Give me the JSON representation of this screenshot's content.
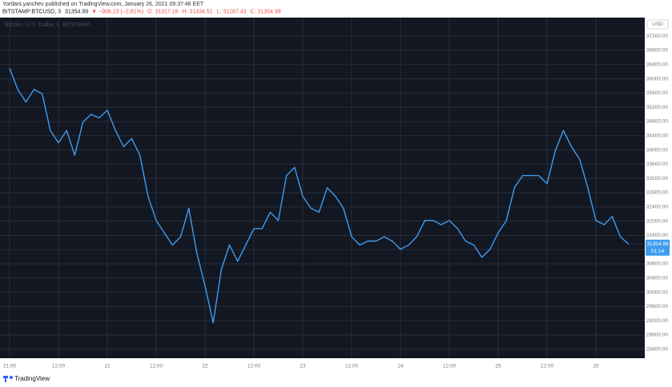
{
  "chart_data": {
    "type": "line",
    "header": {
      "published": "YordanLyanchev published on TradingView.com, January 26, 2021 09:37:48 EET",
      "symbol": "BITSTAMP:BTCUSD, 3",
      "last": "31354.99",
      "change": "▼ −906.23 (−2.81%)",
      "ohlc": [
        "O: 31317.16",
        "H: 31434.51",
        "L: 31287.43",
        "C: 31354.99"
      ]
    },
    "watermark": "Bitcoin / U.S. Dollar, 3, BITSTAMP",
    "y_unit": "USD",
    "last_price_label": "31354.99",
    "countdown": "01:14",
    "brand": "TradingView",
    "color": "#3d9cf0",
    "grid": true,
    "categories": [
      "21:00",
      null,
      null,
      null,
      null,
      null,
      "12:00",
      null,
      null,
      null,
      null,
      null,
      "21",
      null,
      null,
      null,
      null,
      null,
      "12:00",
      null,
      null,
      null,
      null,
      null,
      "22",
      null,
      null,
      null,
      null,
      null,
      "12:00",
      null,
      null,
      null,
      null,
      null,
      "23",
      null,
      null,
      null,
      null,
      null,
      "12:00",
      null,
      null,
      null,
      null,
      null,
      "24",
      null,
      null,
      null,
      null,
      null,
      "12:00",
      null,
      null,
      null,
      null,
      null,
      "25",
      null,
      null,
      null,
      null,
      null,
      "12:00",
      null,
      null,
      null,
      null,
      null,
      "26",
      null,
      null,
      null,
      null
    ],
    "values": [
      36300,
      35700,
      35350,
      35700,
      35580,
      34550,
      34200,
      34550,
      33850,
      34780,
      35000,
      34900,
      35120,
      34550,
      34090,
      34320,
      33850,
      32700,
      32020,
      31670,
      31330,
      31560,
      32360,
      31100,
      30180,
      29140,
      30640,
      31330,
      30870,
      31330,
      31790,
      31790,
      32250,
      32020,
      33280,
      33510,
      32700,
      32360,
      32250,
      32940,
      32700,
      32360,
      31560,
      31330,
      31440,
      31440,
      31560,
      31440,
      31210,
      31330,
      31560,
      32020,
      32020,
      31900,
      32020,
      31790,
      31440,
      31330,
      30980,
      31210,
      31670,
      32020,
      32940,
      33280,
      33280,
      33280,
      33050,
      33970,
      34550,
      34090,
      33740,
      32940,
      32020,
      31900,
      32130,
      31560,
      31354.99
    ],
    "ylim": [
      28147,
      37720
    ],
    "yticks": [
      {
        "value": 28400,
        "label": "28400.00"
      },
      {
        "value": 28800,
        "label": "28800.00"
      },
      {
        "value": 29200,
        "label": "29200.00"
      },
      {
        "value": 29600,
        "label": "29600.00"
      },
      {
        "value": 30000,
        "label": "30000.00"
      },
      {
        "value": 30400,
        "label": "30400.00"
      },
      {
        "value": 30800,
        "label": "30800.00"
      },
      {
        "value": 31200,
        "label": "31200.00"
      },
      {
        "value": 31600,
        "label": "31600.00"
      },
      {
        "value": 32000,
        "label": "32000.00"
      },
      {
        "value": 32400,
        "label": "32400.00"
      },
      {
        "value": 32800,
        "label": "32800.00"
      },
      {
        "value": 33200,
        "label": "33200.00"
      },
      {
        "value": 33600,
        "label": "33600.00"
      },
      {
        "value": 34000,
        "label": "34000.00"
      },
      {
        "value": 34400,
        "label": "34400.00"
      },
      {
        "value": 34800,
        "label": "34800.00"
      },
      {
        "value": 35200,
        "label": "35200.00"
      },
      {
        "value": 35600,
        "label": "35600.00"
      },
      {
        "value": 36000,
        "label": "36000.00"
      },
      {
        "value": 36400,
        "label": "36400.00"
      },
      {
        "value": 36800,
        "label": "36800.00"
      },
      {
        "value": 37200,
        "label": "37200.00"
      }
    ]
  }
}
